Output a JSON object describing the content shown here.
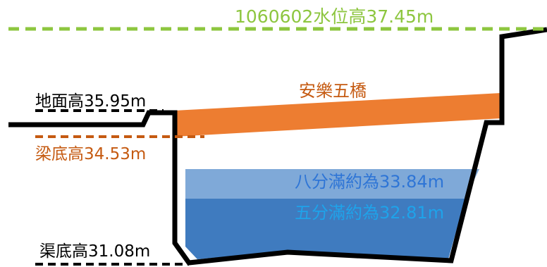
{
  "flood_level_label": "1060602水位高37.45m",
  "ground_label": "地面高35.95m",
  "beam_bottom_label": "梁底高34.53m",
  "bridge_name": "安樂五橋",
  "eighty_percent_label": "八分滿約為33.84m",
  "fifty_percent_label": "五分滿約為32.81m",
  "channel_bottom_label": "渠底高31.08m",
  "colors": {
    "flood_line": "#8dc63f",
    "bridge": "#ed7d31",
    "beam_line": "#c55a11",
    "water_light": "#7fa9d8",
    "water_dark": "#3f7bbf",
    "eighty_text": "#2e75d6",
    "fifty_text": "#1fa3ea",
    "outline": "#000000"
  }
}
